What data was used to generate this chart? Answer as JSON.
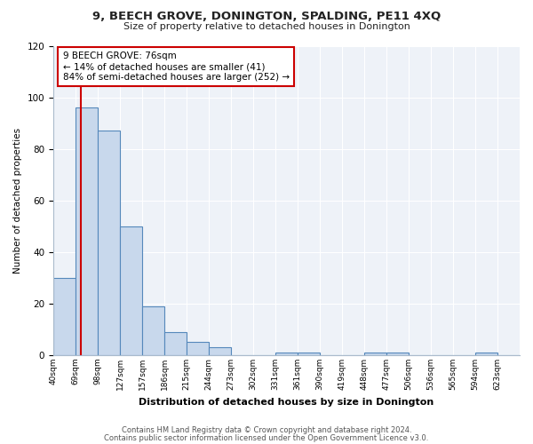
{
  "title": "9, BEECH GROVE, DONINGTON, SPALDING, PE11 4XQ",
  "subtitle": "Size of property relative to detached houses in Donington",
  "xlabel": "Distribution of detached houses by size in Donington",
  "ylabel": "Number of detached properties",
  "bar_labels": [
    "40sqm",
    "69sqm",
    "98sqm",
    "127sqm",
    "157sqm",
    "186sqm",
    "215sqm",
    "244sqm",
    "273sqm",
    "302sqm",
    "331sqm",
    "361sqm",
    "390sqm",
    "419sqm",
    "448sqm",
    "477sqm",
    "506sqm",
    "536sqm",
    "565sqm",
    "594sqm",
    "623sqm"
  ],
  "bar_values": [
    30,
    96,
    87,
    50,
    19,
    9,
    5,
    3,
    0,
    0,
    1,
    1,
    0,
    0,
    1,
    1,
    0,
    0,
    0,
    1,
    0
  ],
  "bar_color": "#c8d8ec",
  "bar_edge_color": "#5588bb",
  "property_bar_index": 1,
  "property_value": 76,
  "annotation_title": "9 BEECH GROVE: 76sqm",
  "annotation_line1": "← 14% of detached houses are smaller (41)",
  "annotation_line2": "84% of semi-detached houses are larger (252) →",
  "annotation_box_color": "#ffffff",
  "annotation_box_edge": "#cc0000",
  "vline_color": "#cc0000",
  "ylim": [
    0,
    120
  ],
  "yticks": [
    0,
    20,
    40,
    60,
    80,
    100,
    120
  ],
  "footer1": "Contains HM Land Registry data © Crown copyright and database right 2024.",
  "footer2": "Contains public sector information licensed under the Open Government Licence v3.0.",
  "bg_color": "#ffffff",
  "plot_bg_color": "#eef2f8",
  "grid_color": "#ffffff",
  "spine_color": "#aabbcc"
}
